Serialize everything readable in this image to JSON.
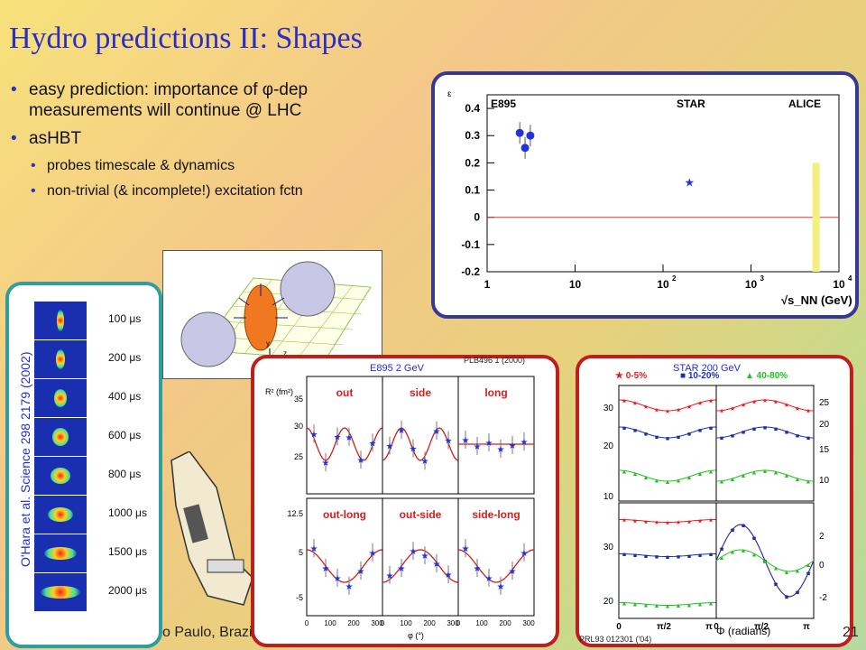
{
  "slide": {
    "title": "Hydro predictions II: Shapes",
    "bullet1": "easy prediction: importance of φ-dep measurements will continue @ LHC",
    "bullet2": "asHBT",
    "sub1": "probes timescale & dynamics",
    "sub2": "non-trivial (& incomplete!) excitation fctn",
    "footer_left": "o Paulo, Brazi",
    "footer_right": "21"
  },
  "refs": {
    "ohara": "O'Hara et al. Science 298 2179 (2002)",
    "e895_label": "E895 2 GeV",
    "e895_ref": "PLB496 1 (2000)",
    "star_label": "STAR 200 GeV",
    "star_ref": "PRL93 012301 ('04)"
  },
  "ohara_times": [
    "100 μs",
    "200 μs",
    "400 μs",
    "600 μs",
    "800 μs",
    "1000 μs",
    "1500 μs",
    "2000 μs"
  ],
  "chart_data": [
    {
      "type": "scatter",
      "ylabel": "ε",
      "xlabel": "√s_NN (GeV)",
      "xscale": "log",
      "xlim": [
        1,
        10000
      ],
      "ylim": [
        -0.2,
        0.45
      ],
      "experiments": [
        "E895",
        "STAR",
        "ALICE"
      ],
      "series": [
        {
          "name": "E895",
          "color": "#2233dd",
          "x": [
            2.35,
            2.7,
            3.1
          ],
          "y": [
            0.31,
            0.255,
            0.3
          ]
        },
        {
          "name": "STAR",
          "color": "#2233dd",
          "x": [
            200
          ],
          "y": [
            0.13
          ]
        }
      ],
      "alice_band": {
        "x": 5500,
        "y": [
          -0.2,
          0.2
        ]
      }
    },
    {
      "type": "scatter",
      "title": "E895 2 GeV",
      "panels": [
        "out",
        "side",
        "long",
        "out-long",
        "out-side",
        "side-long"
      ],
      "xlabel": "φ (°)",
      "ylabel": "R² (fm²)"
    },
    {
      "type": "scatter",
      "title": "STAR 200 GeV",
      "legend": [
        "0-5%",
        "10-20%",
        "40-80%"
      ],
      "xlabel": "Φ (radians)"
    }
  ]
}
